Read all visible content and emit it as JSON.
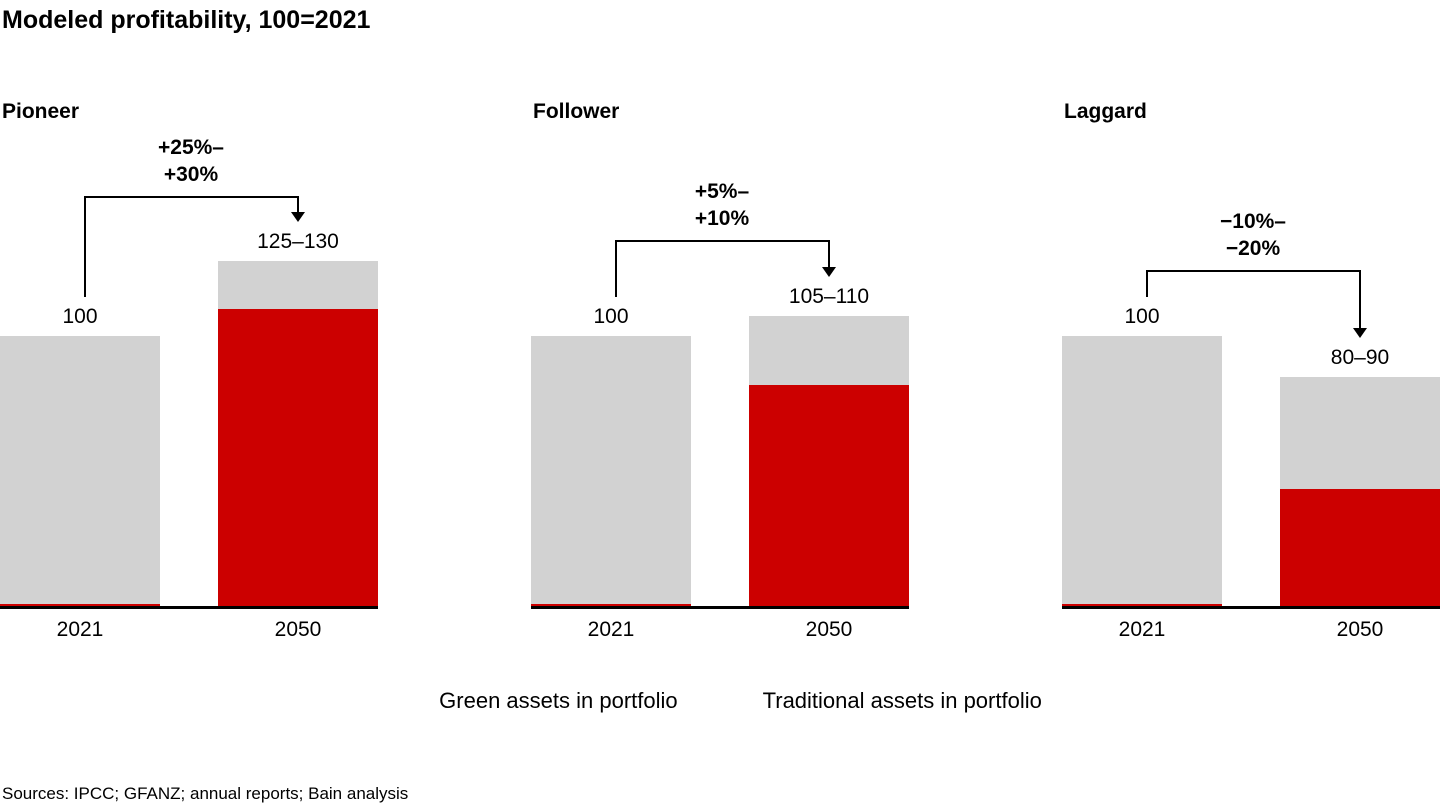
{
  "title": "Modeled profitability, 100=2021",
  "legend": {
    "items": [
      {
        "label": "Green assets in portfolio",
        "color": "#cc0000"
      },
      {
        "label": "Traditional assets in portfolio",
        "color": "#d2d2d2"
      }
    ]
  },
  "sources": "Sources: IPCC; GFANZ; annual reports; Bain analysis",
  "chart_data": {
    "type": "bar",
    "stacked": true,
    "title": "Modeled profitability, 100=2021",
    "unit": "index, 100 = 2021",
    "grid": false,
    "legend_position": "bottom-center",
    "colors": {
      "green_assets": "#cc0000",
      "traditional_assets": "#d2d2d2",
      "axis": "#000000"
    },
    "panels": [
      {
        "title": "Pioneer",
        "change_lines": [
          "+25%–",
          "+30%"
        ],
        "bars": [
          {
            "year": "2021",
            "label": "100",
            "total": 100,
            "green": 2,
            "traditional": 98
          },
          {
            "year": "2050",
            "label": "125–130",
            "total": 127.5,
            "green": 110,
            "traditional": 17.5
          }
        ]
      },
      {
        "title": "Follower",
        "change_lines": [
          "+5%–",
          "+10%"
        ],
        "bars": [
          {
            "year": "2021",
            "label": "100",
            "total": 100,
            "green": 2,
            "traditional": 98
          },
          {
            "year": "2050",
            "label": "105–110",
            "total": 107.5,
            "green": 82,
            "traditional": 25.5
          }
        ]
      },
      {
        "title": "Laggard",
        "change_lines": [
          "−10%–",
          "−20%"
        ],
        "bars": [
          {
            "year": "2021",
            "label": "100",
            "total": 100,
            "green": 2,
            "traditional": 98
          },
          {
            "year": "2050",
            "label": "80–90",
            "total": 85,
            "green": 44,
            "traditional": 41
          }
        ]
      }
    ]
  }
}
